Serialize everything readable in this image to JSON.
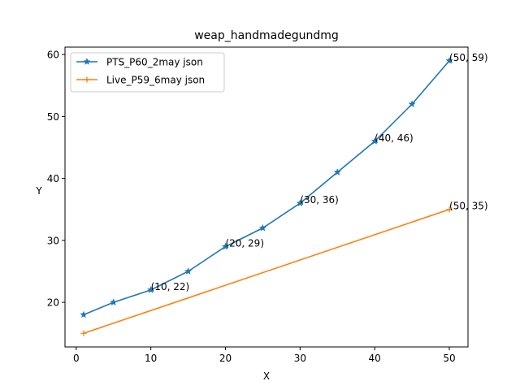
{
  "chart_data": {
    "type": "line",
    "title": "weap_handmadegundmg",
    "xlabel": "X",
    "ylabel": "Y",
    "xlim": [
      -1.5,
      52.5
    ],
    "ylim": [
      12.8,
      61.2
    ],
    "xticks": [
      0,
      10,
      20,
      30,
      40,
      50
    ],
    "yticks": [
      20,
      30,
      40,
      50,
      60
    ],
    "grid": false,
    "legend_position": "upper-left",
    "series": [
      {
        "name": "PTS_P60_2may json",
        "color": "#1f77b4",
        "marker": "star",
        "x": [
          1,
          5,
          10,
          15,
          20,
          25,
          30,
          35,
          40,
          45,
          50
        ],
        "y": [
          18,
          20,
          22,
          25,
          29,
          32,
          36,
          41,
          46,
          52,
          59
        ]
      },
      {
        "name": "Live_P59_6may json",
        "color": "#ff7f0e",
        "marker": "plus",
        "x": [
          1,
          50
        ],
        "y": [
          15,
          35
        ]
      }
    ],
    "annotations": [
      {
        "x": 10,
        "y": 22,
        "text": "(10, 22)"
      },
      {
        "x": 20,
        "y": 29,
        "text": "(20, 29)"
      },
      {
        "x": 30,
        "y": 36,
        "text": "(30, 36)"
      },
      {
        "x": 40,
        "y": 46,
        "text": "(40, 46)"
      },
      {
        "x": 50,
        "y": 59,
        "text": "(50, 59)"
      },
      {
        "x": 50,
        "y": 35,
        "text": "(50, 35)"
      }
    ]
  }
}
